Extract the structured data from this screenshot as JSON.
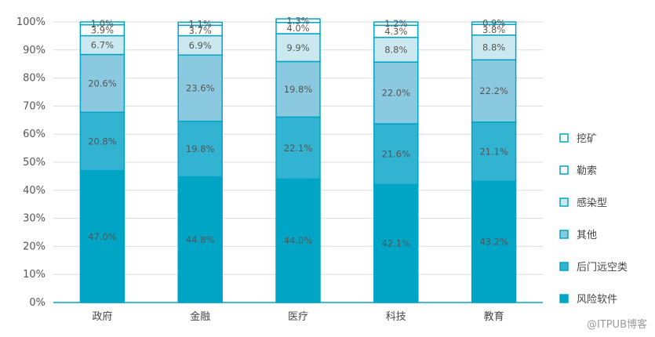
{
  "chart_data": {
    "type": "bar",
    "stacked": true,
    "categories": [
      "政府",
      "金融",
      "医疗",
      "科技",
      "教育"
    ],
    "ylim": [
      0,
      100
    ],
    "yticks": [
      "0%",
      "10%",
      "20%",
      "30%",
      "40%",
      "50%",
      "60%",
      "70%",
      "80%",
      "90%",
      "100%"
    ],
    "legend_position": "right",
    "series": [
      {
        "name": "风险软件",
        "color": "#00a5c6",
        "values": [
          47.0,
          44.8,
          44.0,
          42.1,
          43.2
        ],
        "labels": [
          "47.0%",
          "44.8%",
          "44.0%",
          "42.1%",
          "43.2%"
        ]
      },
      {
        "name": "后门远空类",
        "color": "#33b3d2",
        "values": [
          20.8,
          19.8,
          22.1,
          21.6,
          21.1
        ],
        "labels": [
          "20.8%",
          "19.8%",
          "22.1%",
          "21.6%",
          "21.1%"
        ]
      },
      {
        "name": "其他",
        "color": "#8ac9df",
        "values": [
          20.6,
          23.6,
          19.8,
          22.0,
          22.2
        ],
        "labels": [
          "20.6%",
          "23.6%",
          "19.8%",
          "22.0%",
          "22.2%"
        ]
      },
      {
        "name": "感染型",
        "color": "#cbe8f1",
        "values": [
          6.7,
          6.9,
          9.9,
          8.8,
          8.8
        ],
        "labels": [
          "6.7%",
          "6.9%",
          "9.9%",
          "8.8%",
          "8.8%"
        ]
      },
      {
        "name": "勒索",
        "color": "#ffffff",
        "values": [
          3.9,
          3.7,
          4.0,
          4.3,
          3.8
        ],
        "labels": [
          "3.9%",
          "3.7%",
          "4.0%",
          "4.3%",
          "3.8%"
        ]
      },
      {
        "name": "挖矿",
        "color": "#ffffff",
        "values": [
          1.0,
          1.1,
          1.3,
          1.2,
          0.9
        ],
        "labels": [
          "1.0%",
          "1.1%",
          "1.3%",
          "1.2%",
          "0.9%"
        ]
      }
    ],
    "legend_order": [
      "挖矿",
      "勒索",
      "感染型",
      "其他",
      "后门远空类",
      "风险软件"
    ],
    "border_color": "#00a5c6",
    "grid": true
  },
  "watermark": "@ITPUB博客"
}
